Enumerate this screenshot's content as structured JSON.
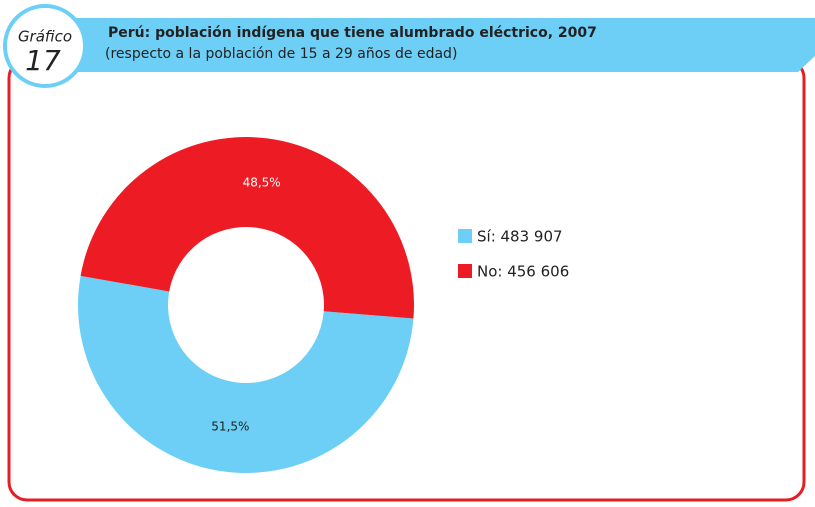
{
  "chart_data": {
    "type": "donut",
    "badge": {
      "label": "Gráfico",
      "number": "17"
    },
    "title": "Perú: población indígena que tiene alumbrado eléctrico, 2007",
    "subtitle": "(respecto a la población de 15 a 29 años de edad)",
    "series": [
      {
        "name": "Sí: 483 907",
        "color": "#6dcff6",
        "value": 51.5,
        "value_label": "51,5%",
        "label_color": "#222222"
      },
      {
        "name": "No: 456 606",
        "color": "#ed1c24",
        "value": 48.5,
        "value_label": "48,5%",
        "label_color": "#ffffff"
      }
    ]
  }
}
